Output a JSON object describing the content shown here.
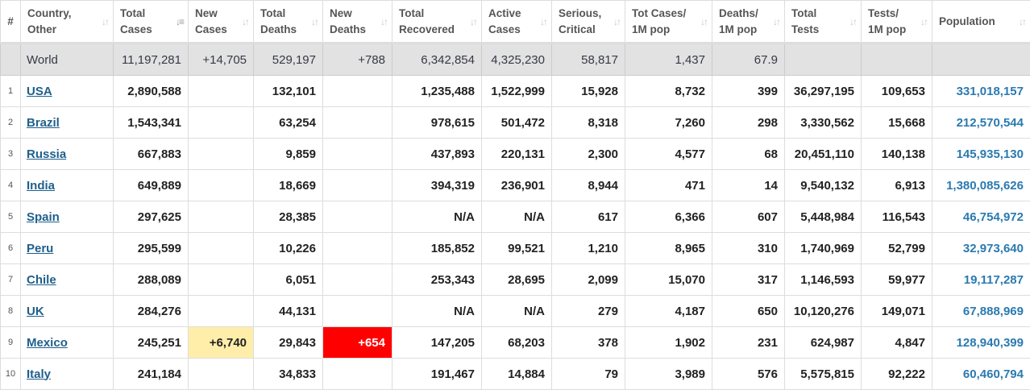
{
  "headers": {
    "rank": "#",
    "country": [
      "Country,",
      "Other"
    ],
    "total_cases": [
      "Total",
      "Cases"
    ],
    "new_cases": [
      "New",
      "Cases"
    ],
    "total_deaths": [
      "Total",
      "Deaths"
    ],
    "new_deaths": [
      "New",
      "Deaths"
    ],
    "total_recovered": [
      "Total",
      "Recovered"
    ],
    "active_cases": [
      "Active",
      "Cases"
    ],
    "serious_critical": [
      "Serious,",
      "Critical"
    ],
    "cases_per_1m": [
      "Tot Cases/",
      "1M pop"
    ],
    "deaths_per_1m": [
      "Deaths/",
      "1M pop"
    ],
    "total_tests": [
      "Total",
      "Tests"
    ],
    "tests_per_1m": [
      "Tests/",
      "1M pop"
    ],
    "population": [
      "Population",
      ""
    ]
  },
  "sort_icons": {
    "default": "↓↑",
    "active": "↓≡"
  },
  "colors": {
    "world_row_bg": "#e2e2e2",
    "new_cases_highlight": "#ffeeaa",
    "new_deaths_highlight": "#ff0000",
    "link": "#1f5f8b",
    "population_text": "#2a7ab0"
  },
  "world": {
    "rank": "",
    "country": "World",
    "total_cases": "11,197,281",
    "new_cases": "+14,705",
    "total_deaths": "529,197",
    "new_deaths": "+788",
    "total_recovered": "6,342,854",
    "active_cases": "4,325,230",
    "serious_critical": "58,817",
    "cases_per_1m": "1,437",
    "deaths_per_1m": "67.9",
    "total_tests": "",
    "tests_per_1m": "",
    "population": ""
  },
  "rows": [
    {
      "rank": "1",
      "country": "USA",
      "total_cases": "2,890,588",
      "new_cases": "",
      "total_deaths": "132,101",
      "new_deaths": "",
      "total_recovered": "1,235,488",
      "active_cases": "1,522,999",
      "serious_critical": "15,928",
      "cases_per_1m": "8,732",
      "deaths_per_1m": "399",
      "total_tests": "36,297,195",
      "tests_per_1m": "109,653",
      "population": "331,018,157"
    },
    {
      "rank": "2",
      "country": "Brazil",
      "total_cases": "1,543,341",
      "new_cases": "",
      "total_deaths": "63,254",
      "new_deaths": "",
      "total_recovered": "978,615",
      "active_cases": "501,472",
      "serious_critical": "8,318",
      "cases_per_1m": "7,260",
      "deaths_per_1m": "298",
      "total_tests": "3,330,562",
      "tests_per_1m": "15,668",
      "population": "212,570,544"
    },
    {
      "rank": "3",
      "country": "Russia",
      "total_cases": "667,883",
      "new_cases": "",
      "total_deaths": "9,859",
      "new_deaths": "",
      "total_recovered": "437,893",
      "active_cases": "220,131",
      "serious_critical": "2,300",
      "cases_per_1m": "4,577",
      "deaths_per_1m": "68",
      "total_tests": "20,451,110",
      "tests_per_1m": "140,138",
      "population": "145,935,130"
    },
    {
      "rank": "4",
      "country": "India",
      "total_cases": "649,889",
      "new_cases": "",
      "total_deaths": "18,669",
      "new_deaths": "",
      "total_recovered": "394,319",
      "active_cases": "236,901",
      "serious_critical": "8,944",
      "cases_per_1m": "471",
      "deaths_per_1m": "14",
      "total_tests": "9,540,132",
      "tests_per_1m": "6,913",
      "population": "1,380,085,626"
    },
    {
      "rank": "5",
      "country": "Spain",
      "total_cases": "297,625",
      "new_cases": "",
      "total_deaths": "28,385",
      "new_deaths": "",
      "total_recovered": "N/A",
      "active_cases": "N/A",
      "serious_critical": "617",
      "cases_per_1m": "6,366",
      "deaths_per_1m": "607",
      "total_tests": "5,448,984",
      "tests_per_1m": "116,543",
      "population": "46,754,972"
    },
    {
      "rank": "6",
      "country": "Peru",
      "total_cases": "295,599",
      "new_cases": "",
      "total_deaths": "10,226",
      "new_deaths": "",
      "total_recovered": "185,852",
      "active_cases": "99,521",
      "serious_critical": "1,210",
      "cases_per_1m": "8,965",
      "deaths_per_1m": "310",
      "total_tests": "1,740,969",
      "tests_per_1m": "52,799",
      "population": "32,973,640"
    },
    {
      "rank": "7",
      "country": "Chile",
      "total_cases": "288,089",
      "new_cases": "",
      "total_deaths": "6,051",
      "new_deaths": "",
      "total_recovered": "253,343",
      "active_cases": "28,695",
      "serious_critical": "2,099",
      "cases_per_1m": "15,070",
      "deaths_per_1m": "317",
      "total_tests": "1,146,593",
      "tests_per_1m": "59,977",
      "population": "19,117,287"
    },
    {
      "rank": "8",
      "country": "UK",
      "total_cases": "284,276",
      "new_cases": "",
      "total_deaths": "44,131",
      "new_deaths": "",
      "total_recovered": "N/A",
      "active_cases": "N/A",
      "serious_critical": "279",
      "cases_per_1m": "4,187",
      "deaths_per_1m": "650",
      "total_tests": "10,120,276",
      "tests_per_1m": "149,071",
      "population": "67,888,969"
    },
    {
      "rank": "9",
      "country": "Mexico",
      "total_cases": "245,251",
      "new_cases": "+6,740",
      "total_deaths": "29,843",
      "new_deaths": "+654",
      "total_recovered": "147,205",
      "active_cases": "68,203",
      "serious_critical": "378",
      "cases_per_1m": "1,902",
      "deaths_per_1m": "231",
      "total_tests": "624,987",
      "tests_per_1m": "4,847",
      "population": "128,940,399"
    },
    {
      "rank": "10",
      "country": "Italy",
      "total_cases": "241,184",
      "new_cases": "",
      "total_deaths": "34,833",
      "new_deaths": "",
      "total_recovered": "191,467",
      "active_cases": "14,884",
      "serious_critical": "79",
      "cases_per_1m": "3,989",
      "deaths_per_1m": "576",
      "total_tests": "5,575,815",
      "tests_per_1m": "92,222",
      "population": "60,460,794"
    }
  ]
}
